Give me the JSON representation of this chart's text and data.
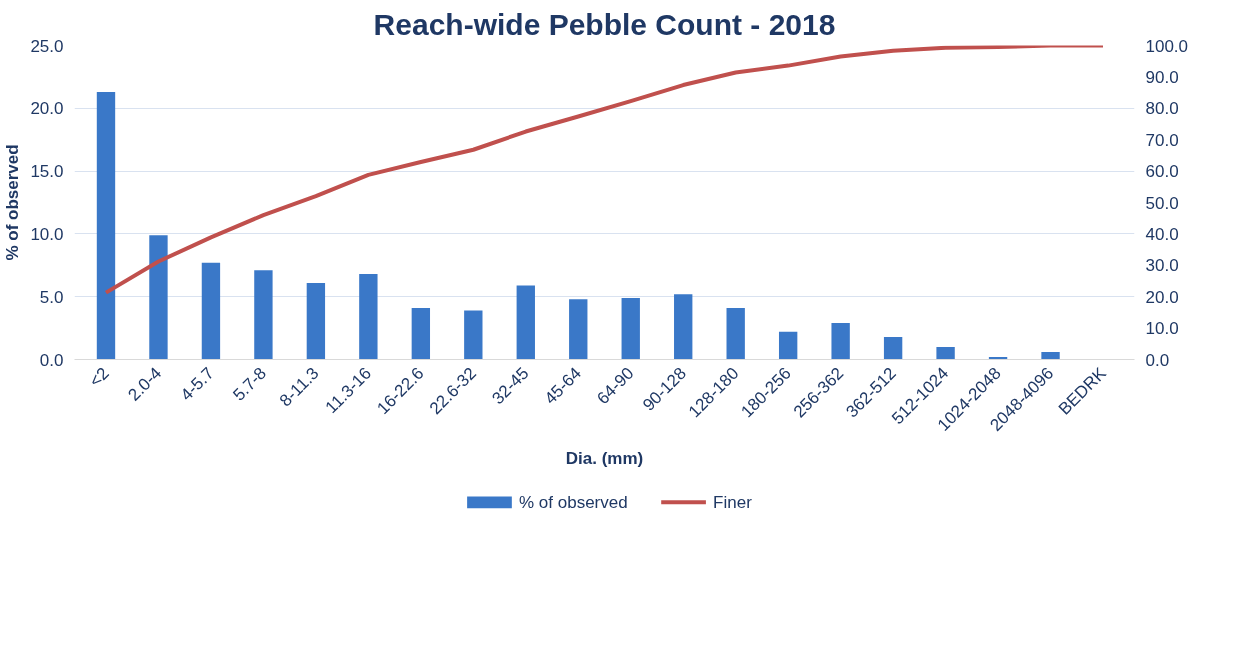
{
  "chart_data": {
    "type": "bar",
    "title": "Reach-wide Pebble Count - 2018",
    "xlabel": "Dia. (mm)",
    "ylabel": "% of observed",
    "categories": [
      "<2",
      "2.0-4",
      "4-5.7",
      "5.7-8",
      "8-11.3",
      "11.3-16",
      "16-22.6",
      "22.6-32",
      "32-45",
      "45-64",
      "64-90",
      "90-128",
      "128-180",
      "180-256",
      "256-362",
      "362-512",
      "512-1024",
      "1024-2048",
      "2048-4096",
      "BEDRK"
    ],
    "series": [
      {
        "name": "% of observed",
        "color": "#3a78c8",
        "type": "bar",
        "values": [
          21.3,
          9.9,
          7.7,
          7.1,
          6.1,
          6.8,
          4.1,
          3.9,
          5.9,
          4.8,
          4.9,
          5.2,
          4.1,
          2.2,
          2.9,
          1.8,
          1.0,
          0.2,
          0.6,
          0
        ]
      },
      {
        "name": "Finer",
        "color": "#c0504d",
        "type": "line",
        "axis": "y2",
        "values": [
          21.3,
          31.2,
          38.9,
          46.0,
          52.0,
          58.8,
          62.9,
          66.8,
          72.6,
          77.4,
          82.3,
          87.4,
          91.4,
          93.6,
          96.5,
          98.3,
          99.3,
          99.5,
          100,
          100
        ]
      }
    ],
    "ylim": [
      0,
      25
    ],
    "yticks": [
      {
        "value": 0,
        "label": "0.0"
      },
      {
        "value": 5,
        "label": "5.0"
      },
      {
        "value": 10,
        "label": "10.0"
      },
      {
        "value": 15,
        "label": "15.0"
      },
      {
        "value": 20,
        "label": "20.0"
      },
      {
        "value": 25,
        "label": "25.0"
      }
    ],
    "y2lim": [
      0,
      100
    ],
    "y2ticks": [
      {
        "value": 0,
        "label": "0.0"
      },
      {
        "value": 10,
        "label": "10.0"
      },
      {
        "value": 20,
        "label": "20.0"
      },
      {
        "value": 30,
        "label": "30.0"
      },
      {
        "value": 40,
        "label": "40.0"
      },
      {
        "value": 50,
        "label": "50.0"
      },
      {
        "value": 60,
        "label": "60.0"
      },
      {
        "value": 70,
        "label": "70.0"
      },
      {
        "value": 80,
        "label": "80.0"
      },
      {
        "value": 90,
        "label": "90.0"
      },
      {
        "value": 100,
        "label": "100.0"
      }
    ],
    "grid": "y",
    "legend": "bottom"
  }
}
